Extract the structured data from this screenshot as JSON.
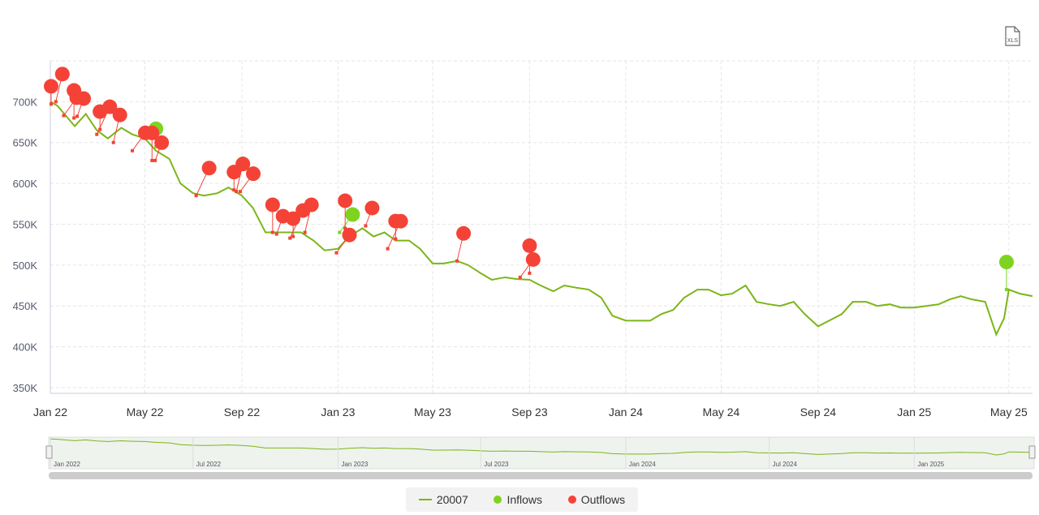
{
  "export": {
    "label": "XLS",
    "icon": "xls-file-icon"
  },
  "colors": {
    "line": "#7cb518",
    "inflow": "#7ed321",
    "outflow": "#f44336",
    "grid": "#e6e6e6"
  },
  "legend": {
    "series": "20007",
    "inflows": "Inflows",
    "outflows": "Outflows"
  },
  "navigator": {
    "labels": [
      "Jan 2022",
      "Jul 2022",
      "Jan 2023",
      "Jul 2023",
      "Jan 2024",
      "Jul 2024",
      "Jan 2025"
    ],
    "label_dates": [
      "2022-01-01",
      "2022-07-01",
      "2023-01-01",
      "2023-07-01",
      "2024-01-01",
      "2024-07-01",
      "2025-01-01"
    ]
  },
  "chart_data": {
    "type": "line",
    "title": "",
    "xlabel": "",
    "ylabel": "",
    "xlim": [
      "2022-01-01",
      "2025-05-31"
    ],
    "ylim": [
      343000,
      750000
    ],
    "grid": true,
    "legend_position": "bottom",
    "x_ticks": [
      "Jan 22",
      "May 22",
      "Sep 22",
      "Jan 23",
      "May 23",
      "Sep 23",
      "Jan 24",
      "May 24",
      "Sep 24",
      "Jan 25",
      "May 25"
    ],
    "x_tick_dates": [
      "2022-01-01",
      "2022-05-01",
      "2022-09-01",
      "2023-01-01",
      "2023-05-01",
      "2023-09-01",
      "2024-01-01",
      "2024-05-01",
      "2024-09-01",
      "2025-01-01",
      "2025-05-01"
    ],
    "y_ticks": [
      "350K",
      "400K",
      "450K",
      "500K",
      "550K",
      "600K",
      "650K",
      "700K"
    ],
    "y_tick_values": [
      350000,
      400000,
      450000,
      500000,
      550000,
      600000,
      650000,
      700000
    ],
    "series": [
      {
        "name": "20007",
        "type": "line",
        "points": [
          [
            "2022-01-01",
            700000
          ],
          [
            "2022-01-10",
            695000
          ],
          [
            "2022-02-01",
            670000
          ],
          [
            "2022-02-15",
            685000
          ],
          [
            "2022-03-01",
            665000
          ],
          [
            "2022-03-15",
            655000
          ],
          [
            "2022-04-01",
            668000
          ],
          [
            "2022-04-15",
            660000
          ],
          [
            "2022-05-01",
            655000
          ],
          [
            "2022-05-15",
            640000
          ],
          [
            "2022-06-01",
            630000
          ],
          [
            "2022-06-15",
            600000
          ],
          [
            "2022-07-01",
            588000
          ],
          [
            "2022-07-15",
            585000
          ],
          [
            "2022-08-01",
            588000
          ],
          [
            "2022-08-15",
            595000
          ],
          [
            "2022-09-01",
            585000
          ],
          [
            "2022-09-15",
            570000
          ],
          [
            "2022-10-01",
            540000
          ],
          [
            "2022-10-15",
            540000
          ],
          [
            "2022-11-01",
            540000
          ],
          [
            "2022-11-15",
            540000
          ],
          [
            "2022-12-01",
            530000
          ],
          [
            "2022-12-15",
            518000
          ],
          [
            "2023-01-01",
            520000
          ],
          [
            "2023-01-15",
            535000
          ],
          [
            "2023-02-01",
            545000
          ],
          [
            "2023-02-15",
            535000
          ],
          [
            "2023-03-01",
            540000
          ],
          [
            "2023-03-15",
            530000
          ],
          [
            "2023-04-01",
            530000
          ],
          [
            "2023-04-15",
            520000
          ],
          [
            "2023-05-01",
            502000
          ],
          [
            "2023-05-15",
            502000
          ],
          [
            "2023-06-01",
            505000
          ],
          [
            "2023-06-15",
            500000
          ],
          [
            "2023-07-01",
            490000
          ],
          [
            "2023-07-15",
            482000
          ],
          [
            "2023-08-01",
            485000
          ],
          [
            "2023-08-15",
            483000
          ],
          [
            "2023-09-01",
            482000
          ],
          [
            "2023-09-15",
            475000
          ],
          [
            "2023-10-01",
            468000
          ],
          [
            "2023-10-15",
            475000
          ],
          [
            "2023-11-01",
            472000
          ],
          [
            "2023-11-15",
            470000
          ],
          [
            "2023-12-01",
            460000
          ],
          [
            "2023-12-15",
            438000
          ],
          [
            "2024-01-01",
            432000
          ],
          [
            "2024-02-01",
            432000
          ],
          [
            "2024-02-15",
            440000
          ],
          [
            "2024-03-01",
            445000
          ],
          [
            "2024-03-15",
            460000
          ],
          [
            "2024-04-01",
            470000
          ],
          [
            "2024-04-15",
            470000
          ],
          [
            "2024-05-01",
            463000
          ],
          [
            "2024-05-15",
            465000
          ],
          [
            "2024-06-01",
            475000
          ],
          [
            "2024-06-15",
            455000
          ],
          [
            "2024-07-01",
            452000
          ],
          [
            "2024-07-15",
            450000
          ],
          [
            "2024-08-01",
            455000
          ],
          [
            "2024-08-15",
            440000
          ],
          [
            "2024-09-01",
            425000
          ],
          [
            "2024-09-15",
            432000
          ],
          [
            "2024-10-01",
            440000
          ],
          [
            "2024-10-15",
            455000
          ],
          [
            "2024-11-01",
            455000
          ],
          [
            "2024-11-15",
            450000
          ],
          [
            "2024-12-01",
            452000
          ],
          [
            "2024-12-15",
            448000
          ],
          [
            "2025-01-01",
            448000
          ],
          [
            "2025-02-01",
            452000
          ],
          [
            "2025-02-15",
            458000
          ],
          [
            "2025-03-01",
            462000
          ],
          [
            "2025-03-15",
            458000
          ],
          [
            "2025-04-01",
            455000
          ],
          [
            "2025-04-15",
            415000
          ],
          [
            "2025-04-25",
            435000
          ],
          [
            "2025-05-01",
            470000
          ],
          [
            "2025-05-15",
            465000
          ],
          [
            "2025-05-31",
            462000
          ]
        ]
      },
      {
        "name": "Inflows",
        "type": "flags",
        "points": [
          [
            "2022-05-15",
            645000
          ],
          [
            "2022-08-25",
            590000
          ],
          [
            "2023-01-03",
            540000
          ],
          [
            "2025-04-28",
            470000
          ]
        ]
      },
      {
        "name": "Outflows",
        "type": "flags",
        "points": [
          [
            "2022-01-02",
            697000
          ],
          [
            "2022-01-08",
            700000
          ],
          [
            "2022-01-18",
            683000
          ],
          [
            "2022-01-31",
            680000
          ],
          [
            "2022-02-04",
            682000
          ],
          [
            "2022-03-01",
            660000
          ],
          [
            "2022-03-05",
            666000
          ],
          [
            "2022-03-22",
            650000
          ],
          [
            "2022-04-15",
            640000
          ],
          [
            "2022-05-10",
            628000
          ],
          [
            "2022-05-14",
            628000
          ],
          [
            "2022-07-05",
            585000
          ],
          [
            "2022-08-22",
            592000
          ],
          [
            "2022-08-25",
            590000
          ],
          [
            "2022-08-30",
            590000
          ],
          [
            "2022-10-10",
            540000
          ],
          [
            "2022-10-15",
            538000
          ],
          [
            "2022-11-01",
            533000
          ],
          [
            "2022-11-05",
            535000
          ],
          [
            "2022-11-20",
            540000
          ],
          [
            "2022-12-30",
            515000
          ],
          [
            "2023-01-10",
            545000
          ],
          [
            "2023-02-05",
            548000
          ],
          [
            "2023-03-05",
            520000
          ],
          [
            "2023-03-15",
            532000
          ],
          [
            "2023-06-01",
            505000
          ],
          [
            "2023-08-20",
            485000
          ],
          [
            "2023-09-01",
            490000
          ]
        ]
      }
    ]
  }
}
